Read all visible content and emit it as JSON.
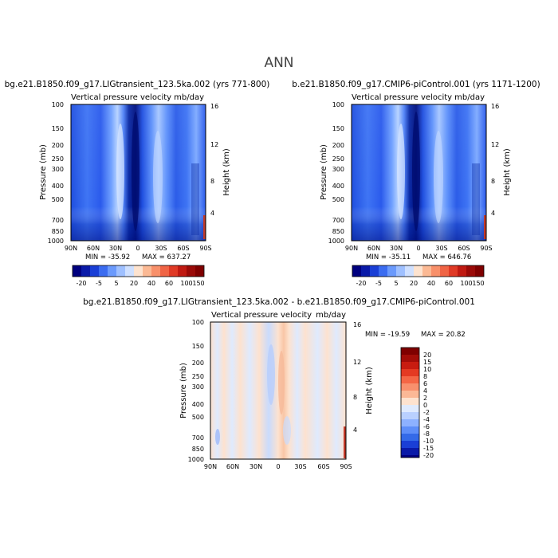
{
  "figure": {
    "season": "ANN",
    "colors": {
      "deep_blue": "#00007f",
      "mid_blue": "#1a4fe0",
      "light_blue": "#bcd6ff",
      "peach": "#fde1cc",
      "dark_red": "#7f0000"
    }
  },
  "chart_data": [
    {
      "type": "heatmap",
      "panel": "top-left",
      "title": "bg.e21.B1850.f09_g17.LIGtransient_123.5ka.002 (yrs 771-800)",
      "subtitle_left": "Vertical pressure velocity",
      "subtitle_right": "mb/day",
      "ylabel": "Pressure (mb)",
      "ylabel_right": "Height (km)",
      "x_tick_labels": [
        "90N",
        "60N",
        "30N",
        "0",
        "30S",
        "60S",
        "90S"
      ],
      "y_tick_labels": [
        "100",
        "150",
        "200",
        "250",
        "300",
        "400",
        "500",
        "700",
        "850",
        "1000"
      ],
      "y_right_tick_labels": [
        "16",
        "12",
        "8",
        "4"
      ],
      "min_label": "MIN = -35.92",
      "max_label": "MAX = 637.27",
      "colorbar_labels": [
        "-20",
        "-5",
        "5",
        "20",
        "40",
        "60",
        "100",
        "150"
      ]
    },
    {
      "type": "heatmap",
      "panel": "top-right",
      "title": "b.e21.B1850.f09_g17.CMIP6-piControl.001 (yrs 1171-1200)",
      "subtitle_left": "Vertical pressure velocity",
      "subtitle_right": "mb/day",
      "ylabel": "Pressure (mb)",
      "ylabel_right": "Height (km)",
      "x_tick_labels": [
        "90N",
        "60N",
        "30N",
        "0",
        "30S",
        "60S",
        "90S"
      ],
      "y_tick_labels": [
        "100",
        "150",
        "200",
        "250",
        "300",
        "400",
        "500",
        "700",
        "850",
        "1000"
      ],
      "y_right_tick_labels": [
        "16",
        "12",
        "8",
        "4"
      ],
      "min_label": "MIN = -35.11",
      "max_label": "MAX = 646.76",
      "colorbar_labels": [
        "-20",
        "-5",
        "5",
        "20",
        "40",
        "60",
        "100",
        "150"
      ]
    },
    {
      "type": "heatmap",
      "panel": "bottom",
      "title": "bg.e21.B1850.f09_g17.LIGtransient_123.5ka.002 - b.e21.B1850.f09_g17.CMIP6-piControl.001",
      "subtitle_left": "Vertical pressure velocity",
      "subtitle_right": "mb/day",
      "ylabel": "Pressure (mb)",
      "ylabel_right": "Height (km)",
      "x_tick_labels": [
        "90N",
        "60N",
        "30N",
        "0",
        "30S",
        "60S",
        "90S"
      ],
      "y_tick_labels": [
        "100",
        "150",
        "200",
        "250",
        "300",
        "400",
        "500",
        "700",
        "850",
        "1000"
      ],
      "y_right_tick_labels": [
        "16",
        "12",
        "8",
        "4"
      ],
      "min_label": "MIN = -19.59",
      "max_label": "MAX = 20.82",
      "colorbar_labels": [
        "20",
        "15",
        "10",
        "8",
        "6",
        "4",
        "2",
        "0",
        "-2",
        "-4",
        "-6",
        "-8",
        "-10",
        "-15",
        "-20"
      ]
    }
  ]
}
